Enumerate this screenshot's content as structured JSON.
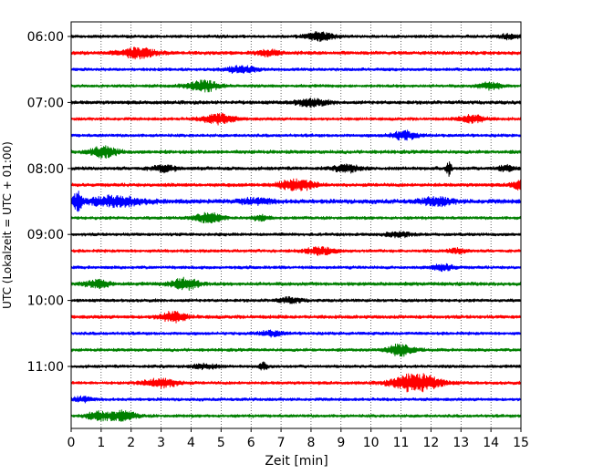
{
  "chart_data": {
    "type": "line",
    "title": "",
    "xlabel": "Zeit  [min]",
    "ylabel": "UTC (Lokalzeit = UTC + 01:00)",
    "xlim": [
      0,
      15
    ],
    "x_ticks": [
      0,
      1,
      2,
      3,
      4,
      5,
      6,
      7,
      8,
      9,
      10,
      11,
      12,
      13,
      14,
      15
    ],
    "x_gridlines": "dotted at every minute",
    "row_interval_minutes": 15,
    "start_time": "06:00",
    "y_tick_labels": [
      "06:00",
      "07:00",
      "08:00",
      "09:00",
      "10:00",
      "11:00"
    ],
    "color_cycle": [
      "#000000",
      "#ff0000",
      "#0000ff",
      "#008000"
    ],
    "traces": [
      {
        "start": "06:00",
        "color": "#000000",
        "noise": 0.35,
        "events": [
          {
            "t": 8.3,
            "amp": 1.1,
            "dur": 0.45
          },
          {
            "t": 14.6,
            "amp": 0.6,
            "dur": 0.3
          }
        ]
      },
      {
        "start": "06:15",
        "color": "#ff0000",
        "noise": 0.4,
        "events": [
          {
            "t": 2.2,
            "amp": 1.2,
            "dur": 0.6
          },
          {
            "t": 6.6,
            "amp": 0.6,
            "dur": 0.4
          }
        ]
      },
      {
        "start": "06:30",
        "color": "#0000ff",
        "noise": 0.35,
        "events": [
          {
            "t": 5.7,
            "amp": 0.9,
            "dur": 0.5
          }
        ]
      },
      {
        "start": "06:45",
        "color": "#008000",
        "noise": 0.35,
        "events": [
          {
            "t": 4.4,
            "amp": 1.4,
            "dur": 0.5
          },
          {
            "t": 14.0,
            "amp": 0.8,
            "dur": 0.4
          }
        ]
      },
      {
        "start": "07:00",
        "color": "#000000",
        "noise": 0.4,
        "events": [
          {
            "t": 8.0,
            "amp": 0.9,
            "dur": 0.5
          }
        ]
      },
      {
        "start": "07:15",
        "color": "#ff0000",
        "noise": 0.35,
        "events": [
          {
            "t": 4.9,
            "amp": 1.3,
            "dur": 0.5
          },
          {
            "t": 13.4,
            "amp": 1.0,
            "dur": 0.4
          }
        ]
      },
      {
        "start": "07:30",
        "color": "#0000ff",
        "noise": 0.35,
        "events": [
          {
            "t": 11.1,
            "amp": 1.1,
            "dur": 0.4
          }
        ]
      },
      {
        "start": "07:45",
        "color": "#008000",
        "noise": 0.4,
        "events": [
          {
            "t": 1.1,
            "amp": 1.3,
            "dur": 0.45
          }
        ]
      },
      {
        "start": "08:00",
        "color": "#000000",
        "noise": 0.4,
        "events": [
          {
            "t": 3.1,
            "amp": 0.7,
            "dur": 0.4
          },
          {
            "t": 9.2,
            "amp": 0.9,
            "dur": 0.4
          },
          {
            "t": 12.6,
            "amp": 1.8,
            "dur": 0.08
          },
          {
            "t": 14.5,
            "amp": 0.6,
            "dur": 0.3
          }
        ]
      },
      {
        "start": "08:15",
        "color": "#ff0000",
        "noise": 0.4,
        "events": [
          {
            "t": 7.5,
            "amp": 1.4,
            "dur": 0.6
          },
          {
            "t": 15.0,
            "amp": 1.2,
            "dur": 0.3
          }
        ]
      },
      {
        "start": "08:30",
        "color": "#0000ff",
        "noise": 0.5,
        "events": [
          {
            "t": 0.2,
            "amp": 2.2,
            "dur": 0.15
          },
          {
            "t": 1.5,
            "amp": 1.2,
            "dur": 0.9
          },
          {
            "t": 6.2,
            "amp": 0.7,
            "dur": 0.5
          },
          {
            "t": 12.2,
            "amp": 1.0,
            "dur": 0.5
          }
        ]
      },
      {
        "start": "08:45",
        "color": "#008000",
        "noise": 0.35,
        "events": [
          {
            "t": 4.6,
            "amp": 1.3,
            "dur": 0.45
          },
          {
            "t": 6.3,
            "amp": 0.6,
            "dur": 0.3
          }
        ]
      },
      {
        "start": "09:00",
        "color": "#000000",
        "noise": 0.35,
        "events": [
          {
            "t": 10.9,
            "amp": 0.6,
            "dur": 0.4
          }
        ]
      },
      {
        "start": "09:15",
        "color": "#ff0000",
        "noise": 0.35,
        "events": [
          {
            "t": 8.3,
            "amp": 0.8,
            "dur": 0.5
          },
          {
            "t": 12.9,
            "amp": 0.6,
            "dur": 0.3
          }
        ]
      },
      {
        "start": "09:30",
        "color": "#0000ff",
        "noise": 0.35,
        "events": [
          {
            "t": 12.4,
            "amp": 0.8,
            "dur": 0.35
          }
        ]
      },
      {
        "start": "09:45",
        "color": "#008000",
        "noise": 0.4,
        "events": [
          {
            "t": 0.9,
            "amp": 0.9,
            "dur": 0.4
          },
          {
            "t": 3.8,
            "amp": 1.5,
            "dur": 0.45
          }
        ]
      },
      {
        "start": "10:00",
        "color": "#000000",
        "noise": 0.35,
        "events": [
          {
            "t": 7.3,
            "amp": 0.6,
            "dur": 0.4
          }
        ]
      },
      {
        "start": "10:15",
        "color": "#ff0000",
        "noise": 0.4,
        "events": [
          {
            "t": 3.4,
            "amp": 1.2,
            "dur": 0.45
          }
        ]
      },
      {
        "start": "10:30",
        "color": "#0000ff",
        "noise": 0.35,
        "events": [
          {
            "t": 6.7,
            "amp": 0.6,
            "dur": 0.4
          }
        ]
      },
      {
        "start": "10:45",
        "color": "#008000",
        "noise": 0.35,
        "events": [
          {
            "t": 11.0,
            "amp": 1.5,
            "dur": 0.45
          }
        ]
      },
      {
        "start": "11:00",
        "color": "#000000",
        "noise": 0.35,
        "events": [
          {
            "t": 4.5,
            "amp": 0.6,
            "dur": 0.4
          },
          {
            "t": 6.4,
            "amp": 0.8,
            "dur": 0.15
          }
        ]
      },
      {
        "start": "11:15",
        "color": "#ff0000",
        "noise": 0.35,
        "events": [
          {
            "t": 3.0,
            "amp": 1.1,
            "dur": 0.55
          },
          {
            "t": 11.5,
            "amp": 2.4,
            "dur": 0.75
          }
        ]
      },
      {
        "start": "11:30",
        "color": "#0000ff",
        "noise": 0.35,
        "events": [
          {
            "t": 0.4,
            "amp": 0.7,
            "dur": 0.3
          }
        ]
      },
      {
        "start": "11:45",
        "color": "#008000",
        "noise": 0.35,
        "events": [
          {
            "t": 0.9,
            "amp": 1.0,
            "dur": 0.4
          },
          {
            "t": 1.7,
            "amp": 1.2,
            "dur": 0.45
          }
        ]
      }
    ]
  }
}
